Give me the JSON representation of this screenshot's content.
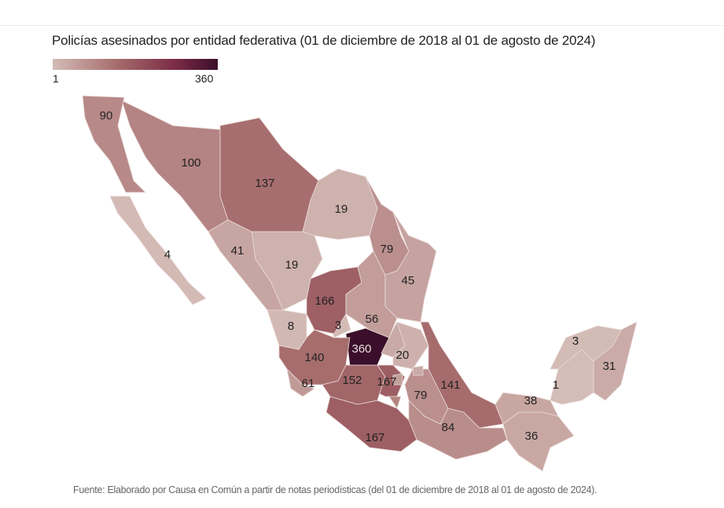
{
  "title": "Policías asesinados por entidad federativa (01 de diciembre de 2018 al 01 de agosto de 2024)",
  "legend": {
    "min": "1",
    "max": "360",
    "colors": [
      "#d4bcb7",
      "#a56a6b",
      "#7a2a45",
      "#3b0f2b"
    ]
  },
  "map_values": [
    90,
    4,
    100,
    137,
    19,
    79,
    45,
    41,
    19,
    166,
    56,
    8,
    3,
    140,
    360,
    20,
    141,
    61,
    152,
    167,
    79,
    167,
    84,
    38,
    36,
    1,
    3,
    31
  ],
  "source": "Fuente: Elaborado por Causa en Común a partir de notas periodísticas (del 01 de diciembre de 2018 al 01 de agosto de 2024)."
}
